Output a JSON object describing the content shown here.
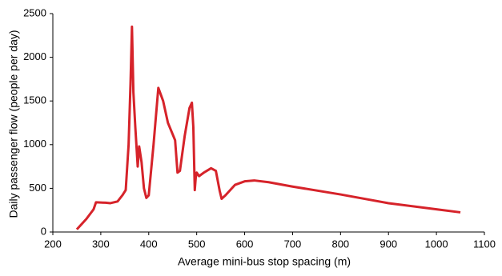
{
  "chart_data": {
    "type": "line",
    "x_label": "Average mini-bus stop spacing (m)",
    "y_label": "Daily passenger flow (people per day)",
    "xlim": [
      200,
      1100
    ],
    "xticks": [
      200,
      300,
      400,
      500,
      600,
      700,
      800,
      900,
      1000,
      1100
    ],
    "ylim": [
      0,
      2500
    ],
    "yticks": [
      0,
      500,
      1000,
      1500,
      2000,
      2500
    ],
    "series": [
      {
        "color": "#d6232a",
        "x": [
          250,
          270,
          285,
          290,
          310,
          320,
          335,
          345,
          352,
          358,
          362,
          365,
          368,
          372,
          377,
          380,
          385,
          390,
          395,
          400,
          410,
          420,
          430,
          440,
          455,
          460,
          465,
          475,
          485,
          490,
          493,
          496,
          498,
          500,
          505,
          515,
          530,
          540,
          548,
          552,
          560,
          580,
          600,
          620,
          650,
          700,
          800,
          900,
          1000,
          1050
        ],
        "values": [
          30,
          150,
          260,
          340,
          335,
          330,
          350,
          420,
          480,
          1000,
          1700,
          2350,
          1600,
          1200,
          750,
          980,
          800,
          500,
          390,
          420,
          1000,
          1650,
          1500,
          1250,
          1050,
          680,
          700,
          1100,
          1420,
          1480,
          1200,
          480,
          620,
          680,
          640,
          680,
          730,
          700,
          470,
          380,
          420,
          540,
          580,
          590,
          570,
          520,
          430,
          330,
          260,
          225
        ]
      }
    ]
  }
}
